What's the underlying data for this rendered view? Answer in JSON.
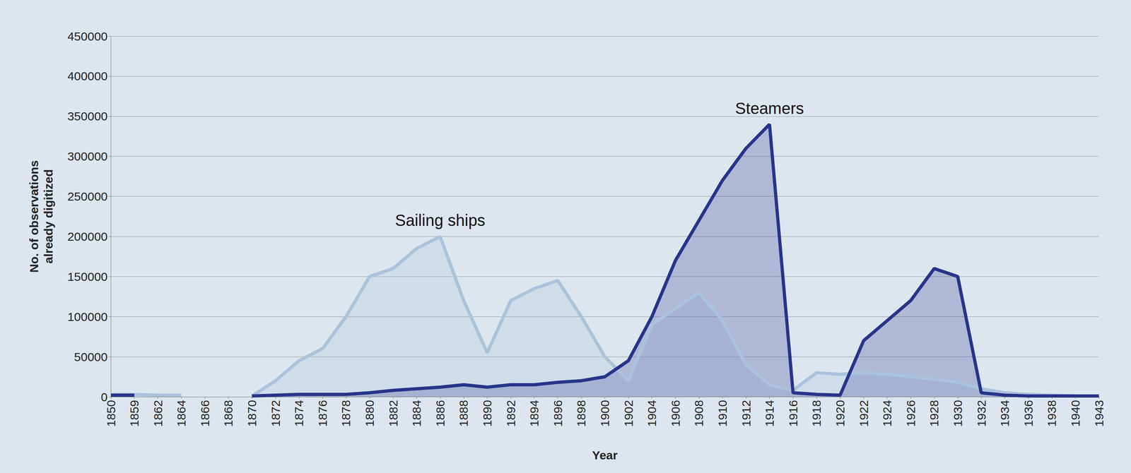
{
  "chart_data": {
    "type": "line",
    "x_label": "Year",
    "y_label": "No. of observations already digitized",
    "categories": [
      "1850",
      "1859",
      "1862",
      "1864",
      "1866",
      "1868",
      "1870",
      "1872",
      "1874",
      "1876",
      "1878",
      "1880",
      "1882",
      "1884",
      "1886",
      "1888",
      "1890",
      "1892",
      "1894",
      "1896",
      "1898",
      "1900",
      "1902",
      "1904",
      "1906",
      "1908",
      "1910",
      "1912",
      "1914",
      "1916",
      "1918",
      "1920",
      "1922",
      "1924",
      "1926",
      "1928",
      "1930",
      "1932",
      "1934",
      "1936",
      "1938",
      "1940",
      "1943"
    ],
    "series": [
      {
        "name": "Sailing ships",
        "color": "#a9c3dc",
        "values": [
          3000,
          3000,
          2000,
          2000,
          null,
          null,
          1000,
          20000,
          45000,
          60000,
          100000,
          150000,
          160000,
          185000,
          200000,
          120000,
          55000,
          120000,
          135000,
          145000,
          100000,
          50000,
          20000,
          90000,
          110000,
          130000,
          95000,
          40000,
          15000,
          8000,
          30000,
          28000,
          30000,
          28000,
          25000,
          22000,
          18000,
          10000,
          5000,
          3000,
          2000,
          1000,
          1000
        ]
      },
      {
        "name": "Steamers",
        "color": "#26348a",
        "values": [
          2000,
          2000,
          null,
          null,
          null,
          null,
          1000,
          2000,
          3000,
          3000,
          3000,
          5000,
          8000,
          10000,
          12000,
          15000,
          12000,
          15000,
          15000,
          18000,
          20000,
          25000,
          45000,
          100000,
          170000,
          220000,
          270000,
          310000,
          340000,
          5000,
          3000,
          2000,
          70000,
          95000,
          120000,
          160000,
          150000,
          5000,
          2000,
          1000,
          1000,
          1000,
          1000
        ]
      }
    ],
    "ylim": [
      0,
      450000
    ],
    "yticks": [
      0,
      50000,
      100000,
      150000,
      200000,
      250000,
      300000,
      350000,
      400000,
      450000
    ],
    "grid": true
  }
}
